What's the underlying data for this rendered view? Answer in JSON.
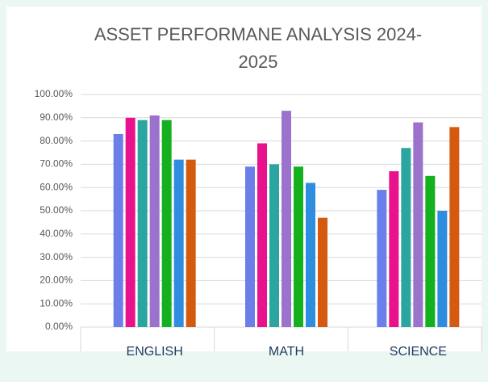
{
  "chart_data": {
    "type": "bar",
    "title": "ASSET PERFORMANE ANALYSIS 2024-2025",
    "categories": [
      "ENGLISH",
      "MATH",
      "SCIENCE"
    ],
    "series": [
      {
        "color": "#6b7fe8",
        "values": [
          83,
          69,
          59
        ]
      },
      {
        "color": "#e8128c",
        "values": [
          90,
          79,
          67
        ]
      },
      {
        "color": "#2aa5a0",
        "values": [
          89,
          70,
          77
        ]
      },
      {
        "color": "#9b72cc",
        "values": [
          91,
          93,
          88
        ]
      },
      {
        "color": "#14b01e",
        "values": [
          89,
          69,
          65
        ]
      },
      {
        "color": "#2f8de0",
        "values": [
          72,
          62,
          50
        ]
      },
      {
        "color": "#d45a10",
        "values": [
          72,
          47,
          86
        ]
      }
    ],
    "ylim": [
      0,
      100
    ],
    "yticks": [
      {
        "value": 0,
        "label": "0.00%"
      },
      {
        "value": 10,
        "label": "10.00%"
      },
      {
        "value": 20,
        "label": "20.00%"
      },
      {
        "value": 30,
        "label": "30.00%"
      },
      {
        "value": 40,
        "label": "40.00%"
      },
      {
        "value": 50,
        "label": "50.00%"
      },
      {
        "value": 60,
        "label": "60.00%"
      },
      {
        "value": 70,
        "label": "70.00%"
      },
      {
        "value": 80,
        "label": "80.00%"
      },
      {
        "value": 90,
        "label": "90.00%"
      },
      {
        "value": 100,
        "label": "100.00%"
      }
    ],
    "grid": true
  }
}
